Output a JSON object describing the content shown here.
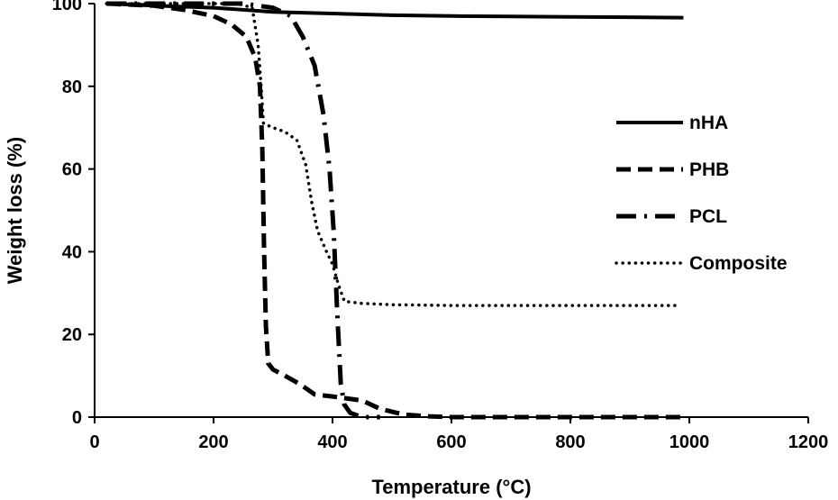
{
  "chart_data": {
    "type": "line",
    "xlabel": "Temperature (°C)",
    "ylabel": "Weight loss (%)",
    "xlim": [
      0,
      1200
    ],
    "ylim": [
      0,
      100
    ],
    "xticks": [
      "0",
      "200",
      "400",
      "600",
      "800",
      "1000",
      "1200"
    ],
    "yticks": [
      "0",
      "20",
      "40",
      "60",
      "80",
      "100"
    ],
    "grid": false,
    "legend": "right",
    "series": [
      {
        "name": "nHA",
        "style": "solid",
        "color": "#000000",
        "points": [
          [
            20,
            100
          ],
          [
            100,
            99.5
          ],
          [
            200,
            99
          ],
          [
            300,
            98
          ],
          [
            400,
            97.6
          ],
          [
            500,
            97.2
          ],
          [
            600,
            97
          ],
          [
            700,
            96.9
          ],
          [
            800,
            96.8
          ],
          [
            900,
            96.7
          ],
          [
            990,
            96.6
          ]
        ]
      },
      {
        "name": "PHB",
        "style": "dashed",
        "color": "#000000",
        "points": [
          [
            20,
            100
          ],
          [
            100,
            99.5
          ],
          [
            150,
            98.5
          ],
          [
            200,
            97
          ],
          [
            230,
            95
          ],
          [
            255,
            92
          ],
          [
            270,
            87
          ],
          [
            278,
            80
          ],
          [
            282,
            65
          ],
          [
            285,
            40
          ],
          [
            288,
            22
          ],
          [
            292,
            13
          ],
          [
            300,
            11.5
          ],
          [
            320,
            10
          ],
          [
            345,
            8
          ],
          [
            370,
            5.5
          ],
          [
            400,
            5
          ],
          [
            450,
            4
          ],
          [
            480,
            2
          ],
          [
            520,
            0.6
          ],
          [
            560,
            0.2
          ],
          [
            600,
            0
          ],
          [
            700,
            0
          ],
          [
            800,
            0
          ],
          [
            900,
            0
          ],
          [
            990,
            0
          ]
        ]
      },
      {
        "name": "PCL",
        "style": "dashdot",
        "color": "#000000",
        "points": [
          [
            20,
            100
          ],
          [
            100,
            100
          ],
          [
            200,
            100
          ],
          [
            250,
            100
          ],
          [
            300,
            99
          ],
          [
            330,
            97
          ],
          [
            350,
            92
          ],
          [
            370,
            85
          ],
          [
            385,
            73
          ],
          [
            395,
            60
          ],
          [
            402,
            45
          ],
          [
            408,
            25
          ],
          [
            414,
            8
          ],
          [
            420,
            3
          ],
          [
            430,
            1
          ],
          [
            450,
            0
          ],
          [
            480,
            0
          ]
        ]
      },
      {
        "name": "Composite",
        "style": "dotted",
        "color": "#000000",
        "points": [
          [
            20,
            100
          ],
          [
            150,
            100
          ],
          [
            240,
            100
          ],
          [
            265,
            99
          ],
          [
            275,
            90
          ],
          [
            280,
            80
          ],
          [
            284,
            71
          ],
          [
            300,
            70
          ],
          [
            320,
            69
          ],
          [
            340,
            67
          ],
          [
            355,
            61
          ],
          [
            365,
            52
          ],
          [
            375,
            45
          ],
          [
            390,
            40
          ],
          [
            400,
            37
          ],
          [
            410,
            32
          ],
          [
            420,
            28
          ],
          [
            450,
            27.5
          ],
          [
            500,
            27.2
          ],
          [
            600,
            27
          ],
          [
            700,
            27
          ],
          [
            800,
            27
          ],
          [
            900,
            27
          ],
          [
            985,
            27
          ]
        ]
      }
    ]
  }
}
